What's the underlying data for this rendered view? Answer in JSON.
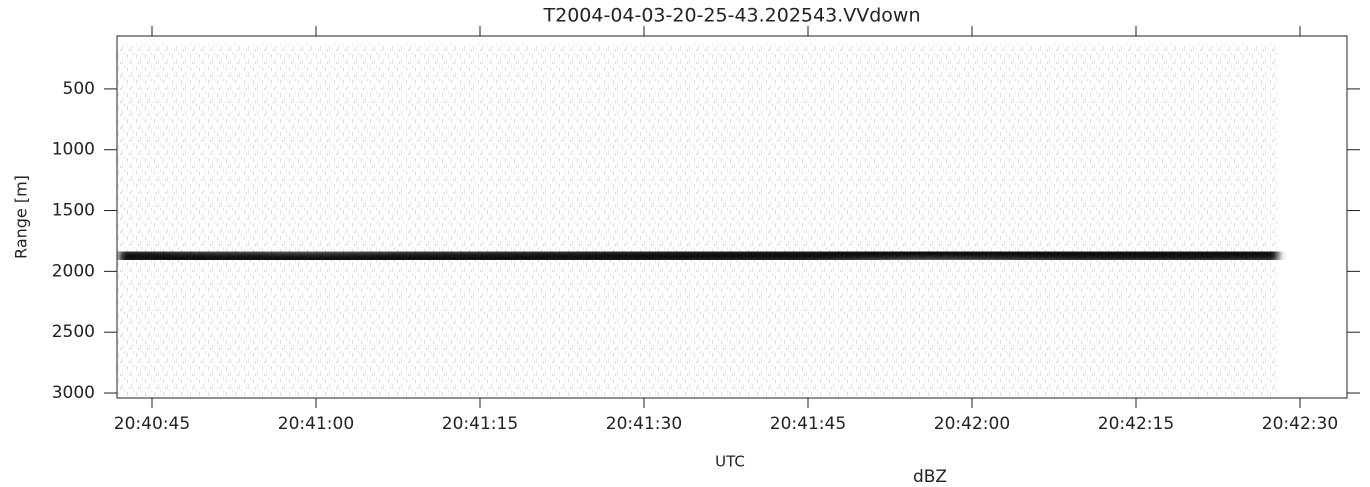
{
  "chart_data": {
    "type": "line",
    "title": "T2004-04-03-20-25-43.202543.VVdown",
    "x_label": "UTC",
    "y_label": "Range [m]",
    "colorbar_label": "dBZ",
    "xlim": [
      74441.8,
      74554.3
    ],
    "xticks": [
      {
        "value": 74445,
        "label": "20:40:45"
      },
      {
        "value": 74460,
        "label": "20:41:00"
      },
      {
        "value": 74475,
        "label": "20:41:15"
      },
      {
        "value": 74490,
        "label": "20:41:30"
      },
      {
        "value": 74505,
        "label": "20:41:45"
      },
      {
        "value": 74520,
        "label": "20:42:00"
      },
      {
        "value": 74535,
        "label": "20:42:15"
      },
      {
        "value": 74550,
        "label": "20:42:30"
      }
    ],
    "ylim": [
      3041,
      65
    ],
    "yticks": [
      500,
      1000,
      1500,
      2000,
      2500,
      3000
    ],
    "series": [
      {
        "name": "Range",
        "color": "#111111",
        "x": [
          74442,
          74450,
          74460,
          74470,
          74480,
          74490,
          74500,
          74505,
          74510,
          74515,
          74520,
          74530,
          74540,
          74548
        ],
        "values": [
          1880,
          1895,
          1900,
          1890,
          1885,
          1878,
          1870,
          1868,
          1855,
          1845,
          1848,
          1860,
          1862,
          1858
        ]
      }
    ]
  }
}
